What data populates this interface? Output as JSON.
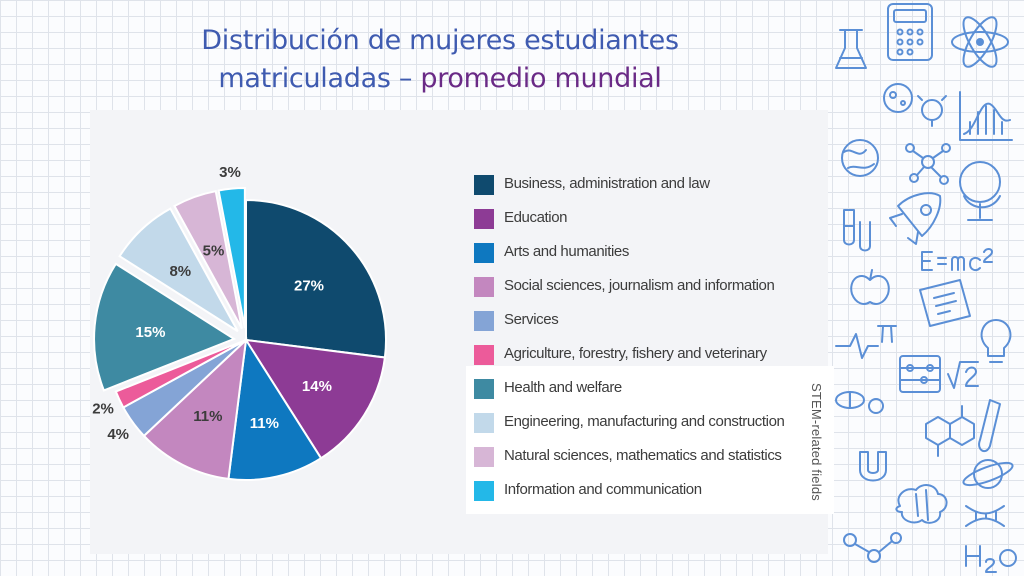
{
  "slide": {
    "title_line1": "Distribución de mujeres estudiantes",
    "title_line2": "matriculadas – ",
    "title_accent": "promedio mundial"
  },
  "stem_label": "STEM-related fields",
  "colors": {
    "title": "#3f5bb0",
    "accent": "#6a2a86",
    "label_on_dark": "#ffffff",
    "label_on_light": "#3c3c3c"
  },
  "chart_data": {
    "type": "pie",
    "title": "Distribución de mujeres estudiantes matriculadas – promedio mundial",
    "unit": "%",
    "series": [
      {
        "name": "Business, administration and law",
        "value": 27,
        "label": "27%",
        "color": "#0f4a6e",
        "stem": false,
        "exploded": false
      },
      {
        "name": "Education",
        "value": 14,
        "label": "14%",
        "color": "#8d3b95",
        "stem": false,
        "exploded": false
      },
      {
        "name": "Arts and humanities",
        "value": 11,
        "label": "11%",
        "color": "#0e78c0",
        "stem": false,
        "exploded": false
      },
      {
        "name": "Social sciences, journalism and information",
        "value": 11,
        "label": "11%",
        "color": "#c387bf",
        "stem": false,
        "exploded": false
      },
      {
        "name": "Services",
        "value": 4,
        "label": "4%",
        "color": "#84a4d6",
        "stem": false,
        "exploded": false
      },
      {
        "name": "Agriculture, forestry, fishery and veterinary",
        "value": 2,
        "label": "2%",
        "color": "#ec5b9a",
        "stem": false,
        "exploded": false
      },
      {
        "name": "Health and welfare",
        "value": 15,
        "label": "15%",
        "color": "#3e8aa2",
        "stem": true,
        "exploded": true
      },
      {
        "name": "Engineering, manufacturing and construction",
        "value": 8,
        "label": "8%",
        "color": "#c2d9ea",
        "stem": true,
        "exploded": true
      },
      {
        "name": "Natural sciences, mathematics and statistics",
        "value": 5,
        "label": "5%",
        "color": "#d7b6d6",
        "stem": true,
        "exploded": true
      },
      {
        "name": "Information and communication",
        "value": 3,
        "label": "3%",
        "color": "#23b8e8",
        "stem": true,
        "exploded": true
      }
    ]
  }
}
